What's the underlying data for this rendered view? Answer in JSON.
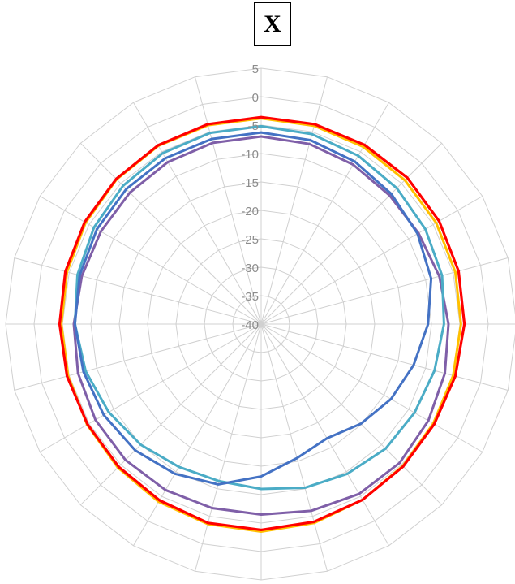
{
  "chart_data": {
    "type": "radar",
    "title": "X",
    "r_range": [
      -40,
      5
    ],
    "r_ticks": [
      "5",
      "0",
      "-5",
      "-10",
      "-15",
      "-20",
      "-25",
      "-30",
      "-35",
      "-40"
    ],
    "r_tick_values": [
      5,
      0,
      -5,
      -10,
      -15,
      -20,
      -25,
      -30,
      -35,
      -40
    ],
    "n_spokes": 24,
    "grid": true,
    "series": [
      {
        "color": "#ffc000",
        "values": [
          -3.8,
          -3.9,
          -4.0,
          -4.2,
          -4.4,
          -4.6,
          -4.8,
          -5.0,
          -5.0,
          -4.7,
          -4.3,
          -3.8,
          -3.5,
          -3.6,
          -3.9,
          -4.3,
          -4.6,
          -4.8,
          -4.8,
          -4.6,
          -4.3,
          -4.0,
          -3.8,
          -3.8
        ]
      },
      {
        "color": "#ff0000",
        "values": [
          -3.6,
          -3.6,
          -3.6,
          -3.6,
          -3.8,
          -4.0,
          -4.2,
          -4.6,
          -4.8,
          -4.6,
          -4.3,
          -4.0,
          -3.8,
          -3.8,
          -4.2,
          -4.5,
          -4.7,
          -4.6,
          -4.5,
          -4.3,
          -4.1,
          -3.9,
          -3.7,
          -3.6
        ]
      },
      {
        "color": "#7f5fa8",
        "values": [
          -7.0,
          -7.2,
          -7.6,
          -8.0,
          -8.0,
          -7.5,
          -7.0,
          -6.5,
          -6.0,
          -5.5,
          -5.5,
          -6.0,
          -6.5,
          -6.5,
          -6.3,
          -6.2,
          -6.3,
          -6.6,
          -7.0,
          -7.3,
          -7.4,
          -7.3,
          -7.1,
          -7.0
        ]
      },
      {
        "color": "#4bacc6",
        "values": [
          -5.2,
          -5.4,
          -5.8,
          -6.2,
          -6.6,
          -7.0,
          -7.8,
          -8.4,
          -8.8,
          -9.0,
          -9.6,
          -10.2,
          -11.0,
          -11.4,
          -11.0,
          -10.0,
          -9.0,
          -8.0,
          -7.2,
          -6.5,
          -6.0,
          -5.6,
          -5.3,
          -5.2
        ]
      },
      {
        "color": "#4472c4",
        "values": [
          -6.3,
          -6.5,
          -7.0,
          -7.6,
          -8.2,
          -9.0,
          -10.6,
          -12.2,
          -13.6,
          -15.2,
          -16.8,
          -15.6,
          -13.2,
          -10.8,
          -9.6,
          -8.6,
          -8.0,
          -7.6,
          -7.2,
          -6.9,
          -6.6,
          -6.4,
          -6.3,
          -6.3
        ]
      }
    ]
  }
}
